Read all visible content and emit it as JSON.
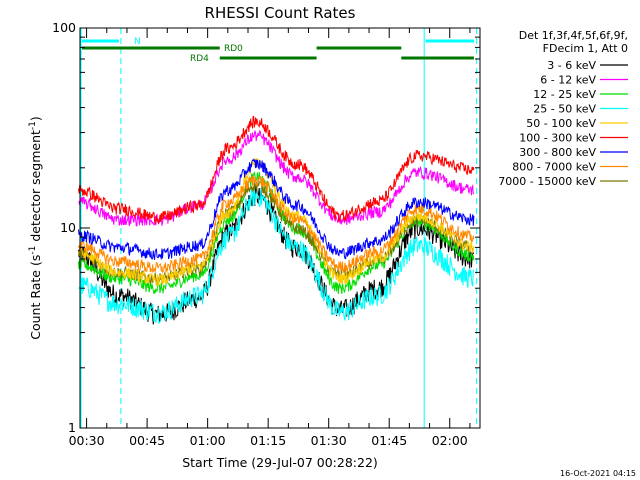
{
  "chart_data": {
    "type": "line",
    "title": "RHESSI Count Rates",
    "xlabel": "Start Time (29-Jul-07 00:28:22)",
    "ylabel": "Count Rate (s",
    "ylabel_sup": "-1",
    "ylabel_rest": " detector segment",
    "ylabel_sup2": "-1",
    "ylabel_close": ")",
    "yscale": "log",
    "ylim": [
      1,
      100
    ],
    "xlim": [
      "00:28:22",
      "02:07:30"
    ],
    "x_ticks": [
      "00:30",
      "00:45",
      "01:00",
      "01:15",
      "01:30",
      "01:45",
      "02:00"
    ],
    "y_ticks": [
      "1",
      "10",
      "100"
    ],
    "legend_header": [
      "Det 1f,3f,4f,5f,6f,9f,",
      "FDecim 1, Att 0"
    ],
    "legend_position": "right",
    "series": [
      {
        "name": "3 - 6 keV",
        "color": "#000000",
        "values": [
          7.5,
          4.6,
          3.7,
          4.5,
          9.5,
          14.5,
          8.0,
          3.9,
          5.0,
          10.0,
          7.0
        ]
      },
      {
        "name": "6 - 12 keV",
        "color": "#ff00ff",
        "values": [
          13.5,
          11.0,
          11.0,
          13.0,
          22.0,
          29.0,
          18.0,
          11.0,
          12.0,
          19.0,
          15.5
        ]
      },
      {
        "name": "12 - 25 keV",
        "color": "#00dd00",
        "values": [
          6.6,
          5.6,
          5.0,
          5.8,
          11.0,
          18.0,
          10.0,
          5.0,
          6.5,
          10.8,
          7.2
        ]
      },
      {
        "name": "25 - 50 keV",
        "color": "#00ffff",
        "values": [
          5.2,
          4.2,
          3.8,
          4.6,
          9.0,
          14.5,
          8.0,
          3.8,
          4.6,
          8.2,
          5.6
        ]
      },
      {
        "name": "50 - 100 keV",
        "color": "#ffcc00",
        "values": [
          7.5,
          6.0,
          5.5,
          6.4,
          12.0,
          21.0,
          11.5,
          5.6,
          7.0,
          11.5,
          8.0
        ]
      },
      {
        "name": "100 - 300 keV",
        "color": "#ff0000",
        "values": [
          15.5,
          12.5,
          11.3,
          13.0,
          25.0,
          34.0,
          21.0,
          11.5,
          13.5,
          23.0,
          19.5
        ]
      },
      {
        "name": "300 - 800 keV",
        "color": "#0000ff",
        "values": [
          9.2,
          8.0,
          7.4,
          8.2,
          15.5,
          21.0,
          13.0,
          7.5,
          8.6,
          13.5,
          11.0
        ]
      },
      {
        "name": "800 - 7000 keV",
        "color": "#ff8800",
        "values": [
          8.2,
          6.8,
          6.3,
          7.0,
          13.5,
          17.5,
          11.0,
          6.4,
          7.6,
          12.5,
          9.0
        ]
      },
      {
        "name": "7000 - 15000 keV",
        "color": "#777700",
        "values": [
          7.3,
          6.0,
          5.6,
          6.3,
          12.0,
          16.5,
          10.0,
          5.8,
          6.8,
          11.0,
          8.0
        ]
      }
    ],
    "x": [
      "00:28",
      "00:38",
      "00:48",
      "00:58",
      "01:05",
      "01:12",
      "01:22",
      "01:33",
      "01:42",
      "01:52",
      "02:06"
    ],
    "attenuator_bars": [
      {
        "label": "N",
        "color": "#00ffff",
        "segments": [
          [
            "00:28",
            "00:38"
          ],
          [
            "01:54",
            "02:06"
          ]
        ]
      },
      {
        "label": "RD0",
        "color": "#007700",
        "segments": [
          [
            "00:28",
            "01:03"
          ],
          [
            "01:27",
            "01:48"
          ]
        ]
      },
      {
        "label": "RD4",
        "color": "#007700",
        "segments": [
          [
            "01:03",
            "01:27"
          ],
          [
            "01:48",
            "02:06"
          ]
        ]
      }
    ],
    "vertical_markers": [
      {
        "time": "00:28:22",
        "style": "solid",
        "color": "#00ffff"
      },
      {
        "time": "00:38:30",
        "style": "dashed",
        "color": "#00ffff"
      },
      {
        "time": "01:53:40",
        "style": "solid",
        "color": "#00ffff"
      },
      {
        "time": "02:06:40",
        "style": "dashed",
        "color": "#00ffff"
      }
    ],
    "grid": false
  },
  "footer_timestamp": "16-Oct-2021 04:15"
}
